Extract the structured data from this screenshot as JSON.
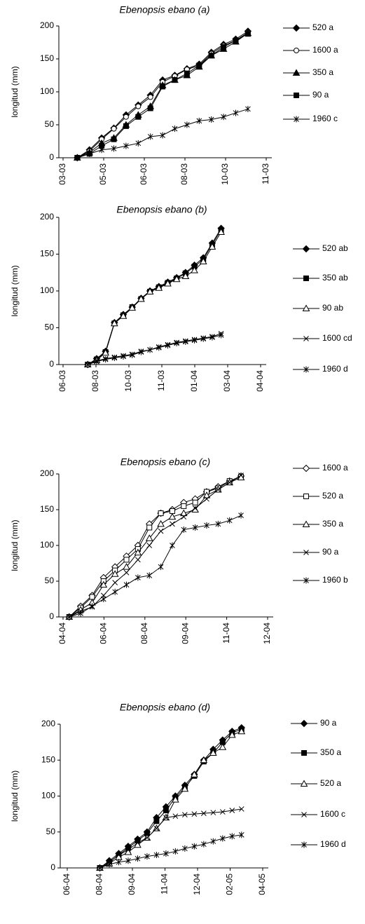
{
  "chart_data": [
    {
      "type": "line",
      "title": "Ebenopsis ebano (a)",
      "y_label": "longitud (mm)",
      "x": [
        0.35,
        0.65,
        0.95,
        1.25,
        1.55,
        1.85,
        2.15,
        2.45,
        2.75,
        3.05,
        3.35,
        3.65,
        3.95,
        4.25,
        4.55
      ],
      "xlim": [
        0,
        5
      ],
      "xticks": [
        {
          "value": 0,
          "label": "03-03"
        },
        {
          "value": 1,
          "label": "05-03"
        },
        {
          "value": 2,
          "label": "06-03"
        },
        {
          "value": 3,
          "label": "08-03"
        },
        {
          "value": 4,
          "label": "10-03"
        },
        {
          "value": 5,
          "label": "11-03"
        }
      ],
      "ylim": [
        0,
        200
      ],
      "yticks": [
        0,
        50,
        100,
        150,
        200
      ],
      "series": [
        {
          "name": "520 a",
          "color": "#000000",
          "marker": "diamond",
          "filled": true,
          "values": [
            0,
            12,
            30,
            45,
            65,
            80,
            95,
            118,
            125,
            135,
            142,
            160,
            172,
            180,
            192
          ]
        },
        {
          "name": "1600 a",
          "color": "#000000",
          "marker": "circle",
          "filled": false,
          "values": [
            0,
            10,
            28,
            44,
            62,
            78,
            92,
            115,
            124,
            134,
            140,
            158,
            170,
            178,
            190
          ]
        },
        {
          "name": "350 a",
          "color": "#000000",
          "marker": "triangle",
          "filled": true,
          "values": [
            0,
            8,
            22,
            30,
            50,
            65,
            78,
            110,
            118,
            125,
            138,
            155,
            165,
            176,
            189
          ]
        },
        {
          "name": "90 a",
          "color": "#000000",
          "marker": "square",
          "filled": true,
          "values": [
            0,
            6,
            18,
            28,
            48,
            62,
            75,
            108,
            118,
            128,
            140,
            155,
            168,
            178,
            188
          ]
        },
        {
          "name": "1960 c",
          "color": "#000000",
          "marker": "star",
          "filled": true,
          "values": [
            0,
            6,
            12,
            14,
            18,
            22,
            32,
            34,
            44,
            50,
            56,
            58,
            62,
            68,
            74
          ]
        }
      ]
    },
    {
      "type": "line",
      "title": "Ebenopsis ebano (b)",
      "y_label": "longitud (mm)",
      "x": [
        0.75,
        1.02,
        1.29,
        1.56,
        1.83,
        2.1,
        2.37,
        2.64,
        2.91,
        3.18,
        3.45,
        3.72,
        3.99,
        4.26,
        4.53,
        4.8
      ],
      "xlim": [
        0,
        6
      ],
      "xticks": [
        {
          "value": 0,
          "label": "06-03"
        },
        {
          "value": 1,
          "label": "08-03"
        },
        {
          "value": 2,
          "label": "10-03"
        },
        {
          "value": 3,
          "label": "11-03"
        },
        {
          "value": 4,
          "label": "01-04"
        },
        {
          "value": 5,
          "label": "03-04"
        },
        {
          "value": 6,
          "label": "04-04"
        }
      ],
      "ylim": [
        0,
        200
      ],
      "yticks": [
        0,
        50,
        100,
        150,
        200
      ],
      "series": [
        {
          "name": "520 ab",
          "color": "#000000",
          "marker": "diamond",
          "filled": true,
          "values": [
            0,
            8,
            18,
            57,
            68,
            78,
            90,
            100,
            106,
            112,
            118,
            125,
            135,
            145,
            165,
            185
          ]
        },
        {
          "name": "350 ab",
          "color": "#000000",
          "marker": "square",
          "filled": true,
          "values": [
            0,
            7,
            17,
            56,
            67,
            78,
            89,
            99,
            105,
            111,
            117,
            124,
            133,
            143,
            163,
            183
          ]
        },
        {
          "name": "90 ab",
          "color": "#000000",
          "marker": "triangle",
          "filled": false,
          "values": [
            0,
            6,
            16,
            56,
            66,
            77,
            89,
            99,
            104,
            110,
            116,
            120,
            128,
            140,
            160,
            180
          ]
        },
        {
          "name": "1600 cd",
          "color": "#000000",
          "marker": "x",
          "filled": true,
          "values": [
            0,
            5,
            8,
            10,
            12,
            14,
            18,
            20,
            24,
            27,
            30,
            32,
            34,
            36,
            38,
            42
          ]
        },
        {
          "name": "1960 d",
          "color": "#000000",
          "marker": "star",
          "filled": true,
          "values": [
            0,
            4,
            7,
            9,
            11,
            13,
            17,
            20,
            23,
            26,
            29,
            31,
            33,
            35,
            37,
            40
          ]
        }
      ]
    },
    {
      "type": "line",
      "title": "Ebenopsis ebano (c)",
      "y_label": "longitud (mm)",
      "x": [
        0.15,
        0.43,
        0.71,
        0.99,
        1.27,
        1.55,
        1.83,
        2.11,
        2.39,
        2.67,
        2.95,
        3.23,
        3.51,
        3.79,
        4.07,
        4.35
      ],
      "xlim": [
        0,
        5
      ],
      "xticks": [
        {
          "value": 0,
          "label": "04-04"
        },
        {
          "value": 1,
          "label": "06-04"
        },
        {
          "value": 2,
          "label": "08-04"
        },
        {
          "value": 3,
          "label": "09-04"
        },
        {
          "value": 4,
          "label": "11-04"
        },
        {
          "value": 5,
          "label": "12-04"
        }
      ],
      "ylim": [
        0,
        200
      ],
      "yticks": [
        0,
        50,
        100,
        150,
        200
      ],
      "series": [
        {
          "name": "1600 a",
          "color": "#000000",
          "marker": "diamond",
          "filled": false,
          "values": [
            0,
            15,
            30,
            55,
            70,
            85,
            100,
            130,
            145,
            150,
            160,
            165,
            175,
            182,
            190,
            197
          ]
        },
        {
          "name": "520 a",
          "color": "#000000",
          "marker": "square",
          "filled": false,
          "values": [
            0,
            13,
            28,
            50,
            65,
            80,
            95,
            125,
            145,
            148,
            155,
            160,
            175,
            180,
            190,
            196
          ]
        },
        {
          "name": "350 a",
          "color": "#000000",
          "marker": "triangle",
          "filled": false,
          "values": [
            0,
            10,
            20,
            45,
            60,
            70,
            90,
            110,
            130,
            140,
            145,
            150,
            170,
            178,
            188,
            195
          ]
        },
        {
          "name": "90 a",
          "color": "#000000",
          "marker": "x",
          "filled": true,
          "values": [
            0,
            8,
            14,
            30,
            48,
            62,
            80,
            100,
            120,
            130,
            140,
            152,
            165,
            178,
            188,
            198
          ]
        },
        {
          "name": "1960 b",
          "color": "#000000",
          "marker": "star",
          "filled": true,
          "values": [
            0,
            5,
            15,
            25,
            35,
            45,
            55,
            58,
            70,
            100,
            122,
            125,
            128,
            130,
            135,
            142
          ]
        }
      ]
    },
    {
      "type": "line",
      "title": "Ebenopsis ebano (d)",
      "y_label": "longitud (mm)",
      "x": [
        1.0,
        1.29,
        1.58,
        1.87,
        2.16,
        2.45,
        2.74,
        3.03,
        3.32,
        3.61,
        3.9,
        4.19,
        4.48,
        4.77,
        5.06,
        5.35
      ],
      "xlim": [
        0,
        6
      ],
      "xticks": [
        {
          "value": 0,
          "label": "06-04"
        },
        {
          "value": 1,
          "label": "08-04"
        },
        {
          "value": 2,
          "label": "09-04"
        },
        {
          "value": 3,
          "label": "11-04"
        },
        {
          "value": 4,
          "label": "12-04"
        },
        {
          "value": 5,
          "label": "02-05"
        },
        {
          "value": 6,
          "label": "04-05"
        }
      ],
      "ylim": [
        0,
        200
      ],
      "yticks": [
        0,
        50,
        100,
        150,
        200
      ],
      "series": [
        {
          "name": "90 a",
          "color": "#000000",
          "marker": "diamond",
          "filled": true,
          "values": [
            0,
            10,
            20,
            30,
            40,
            50,
            70,
            85,
            100,
            115,
            130,
            150,
            165,
            178,
            190,
            195
          ]
        },
        {
          "name": "350 a",
          "color": "#000000",
          "marker": "square",
          "filled": true,
          "values": [
            0,
            8,
            18,
            28,
            38,
            48,
            65,
            80,
            98,
            112,
            128,
            148,
            160,
            175,
            188,
            193
          ]
        },
        {
          "name": "520 a",
          "color": "#000000",
          "marker": "triangle",
          "filled": false,
          "values": [
            0,
            6,
            15,
            22,
            32,
            42,
            55,
            70,
            95,
            110,
            130,
            150,
            160,
            168,
            185,
            190
          ]
        },
        {
          "name": "1600 c",
          "color": "#000000",
          "marker": "x",
          "filled": true,
          "values": [
            0,
            8,
            18,
            25,
            35,
            42,
            55,
            70,
            72,
            74,
            75,
            76,
            77,
            78,
            80,
            82
          ]
        },
        {
          "name": "1960 d",
          "color": "#000000",
          "marker": "star",
          "filled": true,
          "values": [
            0,
            5,
            8,
            10,
            13,
            16,
            18,
            20,
            23,
            27,
            30,
            33,
            37,
            41,
            44,
            46
          ]
        }
      ]
    }
  ]
}
